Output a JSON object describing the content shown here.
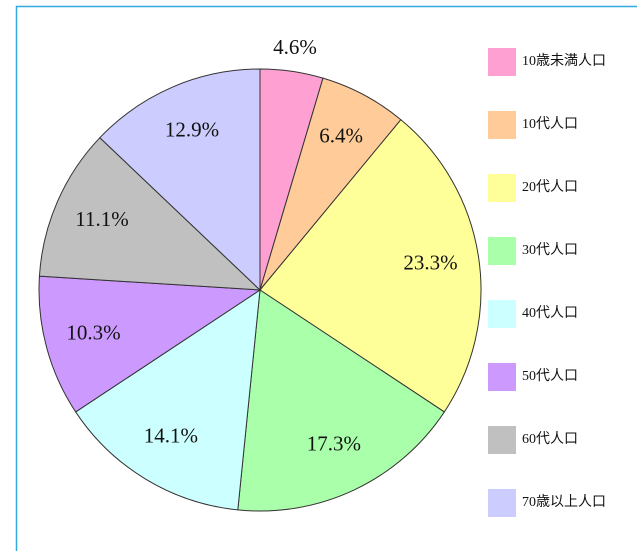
{
  "chart_data": {
    "type": "pie",
    "categories": [
      "10歳未満人口",
      "10代人口",
      "20代人口",
      "30代人口",
      "40代人口",
      "50代人口",
      "60代人口",
      "70歳以上人口"
    ],
    "values": [
      4.6,
      6.4,
      23.3,
      17.3,
      14.1,
      10.3,
      11.1,
      12.9
    ],
    "value_labels": [
      "4.6%",
      "6.4%",
      "23.3%",
      "17.3%",
      "14.1%",
      "10.3%",
      "11.1%",
      "12.9%"
    ],
    "colors": [
      "#ffa0d2",
      "#ffcc99",
      "#ffff99",
      "#aaffaa",
      "#ccffff",
      "#cc99ff",
      "#c0c0c0",
      "#ccccff"
    ],
    "legend": "right"
  }
}
